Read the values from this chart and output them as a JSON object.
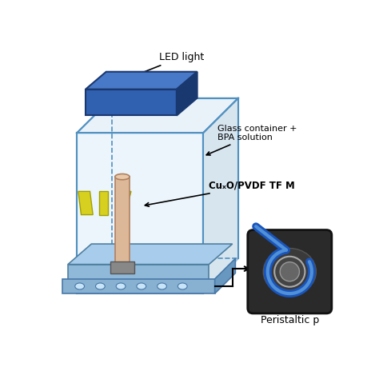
{
  "bg_color": "#ffffff",
  "box_edge_color": "#5090c0",
  "led_color": "#3060b0",
  "led_dark": "#1a3870",
  "pump_dark": "#333333",
  "pump_blue": "#1a55bb",
  "annotations": {
    "led_light": "LED light",
    "glass_container": "Glass container +\nBPA solution",
    "membrane": "CuₓO/PVDF TF M",
    "peristaltic": "Peristaltic p"
  }
}
